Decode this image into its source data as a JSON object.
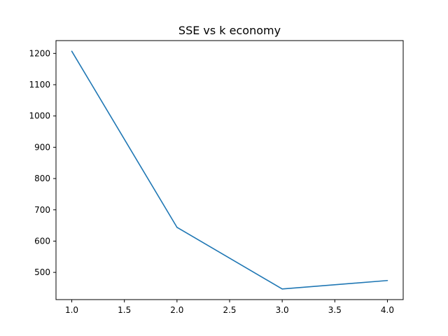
{
  "chart_data": {
    "type": "line",
    "title": "SSE vs k economy",
    "xlabel": "",
    "ylabel": "",
    "x": [
      1.0,
      2.0,
      3.0,
      4.0
    ],
    "series": [
      {
        "values": [
          1207,
          644,
          447,
          474
        ],
        "color": "#1f77b4"
      }
    ],
    "xlim": [
      0.85,
      4.15
    ],
    "ylim": [
      413,
      1241
    ],
    "xticks": [
      1.0,
      1.5,
      2.0,
      2.5,
      3.0,
      3.5,
      4.0
    ],
    "xtick_labels": [
      "1.0",
      "1.5",
      "2.0",
      "2.5",
      "3.0",
      "3.5",
      "4.0"
    ],
    "yticks": [
      500,
      600,
      700,
      800,
      900,
      1000,
      1100,
      1200
    ],
    "ytick_labels": [
      "500",
      "600",
      "700",
      "800",
      "900",
      "1000",
      "1100",
      "1200"
    ],
    "grid": false,
    "legend": false
  }
}
